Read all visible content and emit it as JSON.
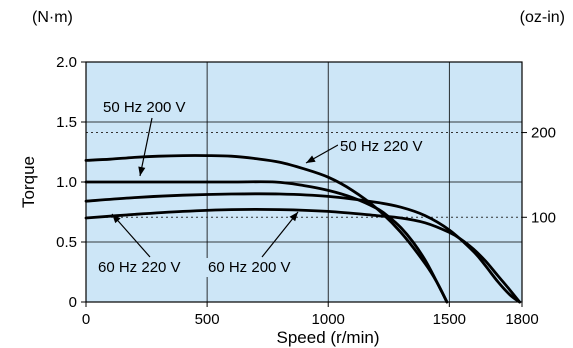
{
  "chart_data": {
    "type": "line",
    "left_unit": "(N·m)",
    "right_unit": "(oz-in)",
    "xlabel": "Speed (r/min)",
    "ylabel": "Torque",
    "xlim": [
      0,
      1800
    ],
    "ylim": [
      0,
      2.0
    ],
    "grid": true,
    "x_ticks": [
      0,
      500,
      1000,
      1500,
      1800
    ],
    "y_ticks": [
      0,
      0.5,
      1.0,
      1.5,
      2.0
    ],
    "y_tick_labels": [
      "0",
      "0.5",
      "1.0",
      "1.5",
      "2.0"
    ],
    "right_axis": {
      "ticks": [
        {
          "label": "100",
          "nm": 0.706
        },
        {
          "label": "200",
          "nm": 1.412
        }
      ]
    },
    "series": [
      {
        "name": "50 Hz 220 V",
        "x": [
          0,
          100,
          200,
          300,
          400,
          500,
          600,
          700,
          800,
          900,
          1000,
          1100,
          1200,
          1300,
          1400,
          1450,
          1490
        ],
        "y": [
          1.18,
          1.19,
          1.205,
          1.215,
          1.22,
          1.22,
          1.215,
          1.195,
          1.165,
          1.11,
          1.04,
          0.93,
          0.78,
          0.58,
          0.32,
          0.16,
          0.0
        ]
      },
      {
        "name": "50 Hz 200 V",
        "x": [
          0,
          200,
          400,
          600,
          780,
          900,
          1000,
          1100,
          1200,
          1250,
          1300,
          1350,
          1400,
          1440,
          1470,
          1490
        ],
        "y": [
          1.0,
          1.0,
          1.0,
          1.0,
          1.0,
          0.97,
          0.93,
          0.87,
          0.78,
          0.71,
          0.62,
          0.5,
          0.35,
          0.2,
          0.08,
          0.0
        ]
      },
      {
        "name": "60 Hz 220 V",
        "x": [
          0,
          200,
          400,
          600,
          800,
          1000,
          1200,
          1300,
          1400,
          1500,
          1600,
          1650,
          1700,
          1750,
          1790
        ],
        "y": [
          0.84,
          0.87,
          0.89,
          0.9,
          0.9,
          0.88,
          0.83,
          0.79,
          0.72,
          0.6,
          0.42,
          0.3,
          0.17,
          0.06,
          0.0
        ]
      },
      {
        "name": "60 Hz 200 V",
        "x": [
          0,
          200,
          400,
          600,
          800,
          1000,
          1200,
          1300,
          1400,
          1500,
          1550,
          1600,
          1650,
          1700,
          1750,
          1790
        ],
        "y": [
          0.7,
          0.73,
          0.755,
          0.77,
          0.77,
          0.755,
          0.72,
          0.7,
          0.66,
          0.58,
          0.52,
          0.44,
          0.34,
          0.22,
          0.1,
          0.0
        ]
      }
    ],
    "annotations": [
      {
        "text": "50 Hz 200 V",
        "series": "50 Hz 200 V"
      },
      {
        "text": "50 Hz 220 V",
        "series": "50 Hz 220 V"
      },
      {
        "text": "60 Hz 220 V",
        "series": "60 Hz 220 V"
      },
      {
        "text": "60 Hz 200 V",
        "series": "60 Hz 200 V"
      }
    ]
  }
}
